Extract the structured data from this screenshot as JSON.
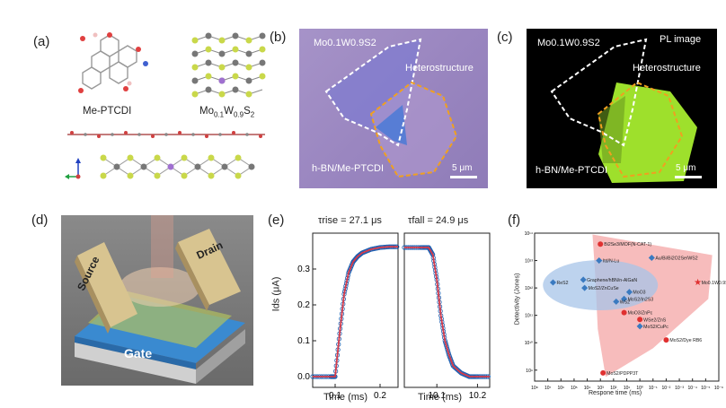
{
  "panels": {
    "a": {
      "label": "(a)",
      "mol1": "Me-PTCDI",
      "mol2_main": "Mo",
      "mol2_sub1": "0.1",
      "mol2_mid": "W",
      "mol2_sub2": "0.9",
      "mol2_end": "S",
      "mol2_sub3": "2"
    },
    "b": {
      "label": "(b)",
      "mo_label": "Mo0.1W0.9S2",
      "hetero": "Heterostructure",
      "hbn": "h-BN/Me-PTCDI",
      "scale": "5 μm"
    },
    "c": {
      "label": "(c)",
      "mo_label": "Mo0.1W0.9S2",
      "pl": "PL image",
      "hetero": "Heterostructure",
      "hbn": "h-BN/Me-PTCDI",
      "scale": "5 μm"
    },
    "d": {
      "label": "(d)",
      "source": "Source",
      "drain": "Drain",
      "gate": "Gate"
    },
    "e": {
      "label": "(e)",
      "tau_rise": "τrise = 27.1 μs",
      "tau_fall": "τfall = 24.9 μs",
      "ylabel": "Ids (μA)",
      "xlabel1": "Time (ms)",
      "xlabel2": "Time (ms)",
      "yticks": [
        "0.0",
        "0.1",
        "0.2",
        "0.3"
      ],
      "xticks1": [
        "0.1",
        "0.2"
      ],
      "xticks2": [
        "10.1",
        "10.2"
      ]
    },
    "f": {
      "label": "(f)",
      "ylabel": "Detectivity (Jones)",
      "xlabel": "Respone time (ms)",
      "yticks": [
        "10¹⁴",
        "10¹³",
        "10¹²",
        "10¹¹",
        "10¹⁰",
        "10⁹"
      ],
      "xticks": [
        "10⁸",
        "10⁷",
        "10⁶",
        "10⁵",
        "10⁴",
        "10³",
        "10²",
        "10¹",
        "10⁰",
        "10⁻¹",
        "10⁻²",
        "10⁻³",
        "10⁻⁴",
        "10⁻⁵",
        "10⁻⁶"
      ]
    }
  },
  "chart_data": [
    {
      "type": "line",
      "panel": "e-rise",
      "ylabel": "Ids (μA)",
      "xlabel": "Time (ms)",
      "xlim": [
        0.05,
        0.24
      ],
      "ylim": [
        -0.03,
        0.4
      ],
      "series": [
        {
          "x": [
            0.05,
            0.09,
            0.1,
            0.11,
            0.12,
            0.13,
            0.14,
            0.15,
            0.16,
            0.18,
            0.2,
            0.22,
            0.24
          ],
          "y": [
            0.0,
            0.0,
            0.0,
            0.12,
            0.23,
            0.29,
            0.32,
            0.335,
            0.345,
            0.355,
            0.36,
            0.362,
            0.362
          ]
        }
      ]
    },
    {
      "type": "line",
      "panel": "e-fall",
      "xlabel": "Time (ms)",
      "xlim": [
        10.02,
        10.23
      ],
      "ylim": [
        -0.03,
        0.4
      ],
      "series": [
        {
          "x": [
            10.02,
            10.06,
            10.08,
            10.09,
            10.1,
            10.11,
            10.12,
            10.13,
            10.14,
            10.16,
            10.18,
            10.2,
            10.23
          ],
          "y": [
            0.36,
            0.36,
            0.36,
            0.34,
            0.27,
            0.17,
            0.1,
            0.06,
            0.03,
            0.01,
            0.0,
            0.0,
            0.0
          ]
        }
      ]
    },
    {
      "type": "scatter",
      "panel": "f",
      "xlabel": "Respone time (ms)",
      "ylabel": "Detectivity (Jones)",
      "xscale": "log-reversed",
      "yscale": "log",
      "xlim_exp": [
        8,
        -6
      ],
      "ylim_exp": [
        8.6,
        14
      ],
      "points": [
        {
          "label": "Bi2Se3/MOF(N-CAT-1)",
          "xexp": 3.0,
          "yexp": 13.6,
          "color": "#e03030"
        },
        {
          "label": "Au/Bi/Bi2O2Se/WS2",
          "xexp": -0.9,
          "yexp": 13.1,
          "color": "#3a7ac0"
        },
        {
          "label": "Itd/N-Lu",
          "xexp": 3.1,
          "yexp": 13.0,
          "color": "#3a7ac0"
        },
        {
          "label": "ReS2",
          "xexp": 6.6,
          "yexp": 12.2,
          "color": "#3a7ac0"
        },
        {
          "label": "Graphene/hBN/n-AlGaN",
          "xexp": 4.3,
          "yexp": 12.3,
          "color": "#3a7ac0"
        },
        {
          "label": "MoS2/ZnCuSe",
          "xexp": 4.2,
          "yexp": 12.0,
          "color": "#3a7ac0"
        },
        {
          "label": "MoO3",
          "xexp": 0.8,
          "yexp": 11.85,
          "color": "#3a7ac0"
        },
        {
          "label": "MoS2/In2S3",
          "xexp": 1.2,
          "yexp": 11.6,
          "color": "#3a7ac0"
        },
        {
          "label": "WS2",
          "xexp": 1.8,
          "yexp": 11.5,
          "color": "#3a7ac0"
        },
        {
          "label": "Mo0.1W0.9S2/Me-PTCDI",
          "xexp": -4.4,
          "yexp": 12.2,
          "color": "#e03030"
        },
        {
          "label": "MoO3/ZnPc",
          "xexp": 1.2,
          "yexp": 11.1,
          "color": "#e03030"
        },
        {
          "label": "WSe2/ZnS",
          "xexp": 0.0,
          "yexp": 10.85,
          "color": "#e03030"
        },
        {
          "label": "MoS2/CuPc",
          "xexp": 0.0,
          "yexp": 10.6,
          "color": "#3a7ac0"
        },
        {
          "label": "MoS2/Dye RB6",
          "xexp": -2.0,
          "yexp": 10.1,
          "color": "#e03030"
        },
        {
          "label": "MoS2/PDPP3T",
          "xexp": 2.8,
          "yexp": 8.9,
          "color": "#e03030"
        }
      ]
    }
  ],
  "colors": {
    "rise_fall_line": "#d43a4a",
    "rise_fall_points": "#1f5fb0",
    "region_red": "#f4a6a6",
    "region_blue": "#a7c4e8",
    "panel_b_bg": "#9a86c0",
    "panel_c_bg": "#000000",
    "flake_green": "#9ee02c"
  }
}
